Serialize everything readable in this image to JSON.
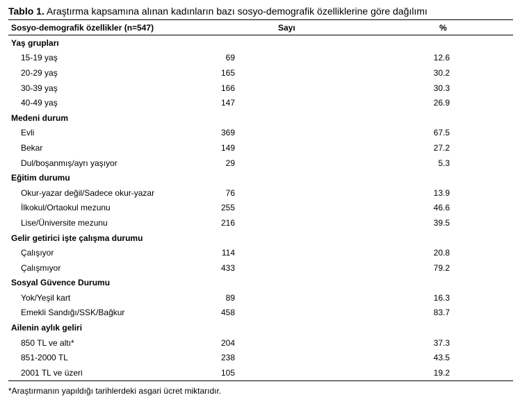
{
  "title": {
    "label": "Tablo 1.",
    "text": " Araştırma kapsamına alınan kadınların bazı sosyo-demografik özelliklerine göre dağılımı"
  },
  "header": {
    "col1": "Sosyo-demografik özellikler (n=547)",
    "col2": "Sayı",
    "col3": "%"
  },
  "groups": [
    {
      "name": "Yaş grupları",
      "rows": [
        {
          "label": "15-19 yaş",
          "count": "69",
          "percent": "12.6"
        },
        {
          "label": "20-29 yaş",
          "count": "165",
          "percent": "30.2"
        },
        {
          "label": "30-39 yaş",
          "count": "166",
          "percent": "30.3"
        },
        {
          "label": "40-49 yaş",
          "count": "147",
          "percent": "26.9"
        }
      ]
    },
    {
      "name": "Medeni durum",
      "rows": [
        {
          "label": "Evli",
          "count": "369",
          "percent": "67.5"
        },
        {
          "label": "Bekar",
          "count": "149",
          "percent": "27.2"
        },
        {
          "label": "Dul/boşanmış/ayrı yaşıyor",
          "count": "29",
          "percent": "5.3"
        }
      ]
    },
    {
      "name": "Eğitim durumu",
      "rows": [
        {
          "label": "Okur-yazar değil/Sadece okur-yazar",
          "count": "76",
          "percent": "13.9"
        },
        {
          "label": "İlkokul/Ortaokul mezunu",
          "count": "255",
          "percent": "46.6"
        },
        {
          "label": "Lise/Üniversite mezunu",
          "count": "216",
          "percent": "39.5"
        }
      ]
    },
    {
      "name": "Gelir getirici işte çalışma durumu",
      "rows": [
        {
          "label": "Çalışıyor",
          "count": "114",
          "percent": "20.8"
        },
        {
          "label": "Çalışmıyor",
          "count": "433",
          "percent": "79.2"
        }
      ]
    },
    {
      "name": "Sosyal Güvence Durumu",
      "rows": [
        {
          "label": "Yok/Yeşil kart",
          "count": "89",
          "percent": "16.3"
        },
        {
          "label": "Emekli Sandığı/SSK/Bağkur",
          "count": "458",
          "percent": "83.7"
        }
      ]
    },
    {
      "name": "Ailenin aylık geliri",
      "rows": [
        {
          "label": "850 TL ve altı*",
          "count": "204",
          "percent": "37.3"
        },
        {
          "label": "851-2000 TL",
          "count": "238",
          "percent": "43.5"
        },
        {
          "label": "2001 TL ve üzeri",
          "count": "105",
          "percent": "19.2"
        }
      ]
    }
  ],
  "footnote": "*Araştırmanın yapıldığı tarihlerdeki asgari ücret miktarıdır."
}
